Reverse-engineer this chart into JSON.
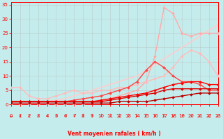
{
  "xlabel": "Vent moyen/en rafales ( km/h )",
  "xlim": [
    0,
    23
  ],
  "ylim": [
    0,
    36
  ],
  "yticks": [
    0,
    5,
    10,
    15,
    20,
    25,
    30,
    35
  ],
  "xticks": [
    0,
    1,
    2,
    3,
    4,
    5,
    6,
    7,
    8,
    9,
    10,
    11,
    12,
    13,
    14,
    15,
    16,
    17,
    18,
    19,
    20,
    21,
    22,
    23
  ],
  "bg_color": "#c5ecec",
  "grid_color": "#b0b0b0",
  "lines": [
    {
      "comment": "straight diagonal - lightest pink, no markers",
      "x": [
        0,
        1,
        2,
        3,
        4,
        5,
        6,
        7,
        8,
        9,
        10,
        11,
        12,
        13,
        14,
        15,
        16,
        17,
        18,
        19,
        20,
        21,
        22,
        23
      ],
      "y": [
        0,
        0,
        0,
        0.5,
        1,
        1.5,
        2,
        3,
        4,
        5,
        6,
        7,
        8,
        9,
        10,
        12,
        14,
        16,
        18,
        20,
        22,
        24,
        26,
        28
      ],
      "color": "#ffcccc",
      "lw": 1.2,
      "marker": null,
      "ms": 0,
      "zorder": 2
    },
    {
      "comment": "big peak at x=17 ~34, light pink with small markers",
      "x": [
        0,
        1,
        2,
        3,
        4,
        5,
        6,
        7,
        8,
        9,
        10,
        11,
        12,
        13,
        14,
        15,
        16,
        17,
        18,
        19,
        20,
        21,
        22,
        23
      ],
      "y": [
        0,
        0,
        0,
        0,
        0,
        0,
        0,
        0,
        0,
        0.5,
        1,
        2,
        3,
        4,
        5,
        8,
        17,
        34,
        32,
        25,
        24,
        25,
        25,
        25
      ],
      "color": "#ffaaaa",
      "lw": 1.0,
      "marker": "D",
      "ms": 2.0,
      "zorder": 3
    },
    {
      "comment": "medium pink line reaching ~19 at x=20, with markers",
      "x": [
        0,
        1,
        2,
        3,
        4,
        5,
        6,
        7,
        8,
        9,
        10,
        11,
        12,
        13,
        14,
        15,
        16,
        17,
        18,
        19,
        20,
        21,
        22,
        23
      ],
      "y": [
        6,
        6,
        3,
        2,
        2,
        3,
        4,
        5,
        4,
        4,
        5,
        5,
        6,
        6,
        7,
        8,
        9,
        10,
        13,
        17,
        19,
        18,
        15,
        10
      ],
      "color": "#ffbbbb",
      "lw": 1.0,
      "marker": "D",
      "ms": 2.0,
      "zorder": 3
    },
    {
      "comment": "dark red line peak ~15 at x=17-18",
      "x": [
        0,
        1,
        2,
        3,
        4,
        5,
        6,
        7,
        8,
        9,
        10,
        11,
        12,
        13,
        14,
        15,
        16,
        17,
        18,
        19,
        20,
        21,
        22,
        23
      ],
      "y": [
        1,
        1,
        1,
        1,
        1,
        1,
        1,
        1.5,
        2,
        2.5,
        3,
        4,
        5,
        6,
        8,
        12,
        15,
        13,
        10,
        8,
        8,
        7,
        5,
        5
      ],
      "color": "#ff4444",
      "lw": 1.0,
      "marker": "D",
      "ms": 2.0,
      "zorder": 5
    },
    {
      "comment": "red line - mostly flat ~1 then rises to ~8",
      "x": [
        0,
        1,
        2,
        3,
        4,
        5,
        6,
        7,
        8,
        9,
        10,
        11,
        12,
        13,
        14,
        15,
        16,
        17,
        18,
        19,
        20,
        21,
        22,
        23
      ],
      "y": [
        1,
        1,
        1,
        1,
        1,
        1,
        1,
        1,
        1,
        1,
        1.5,
        2,
        2.5,
        3,
        3.5,
        4,
        5,
        6,
        7,
        7.5,
        8,
        8,
        7,
        7
      ],
      "color": "#ff0000",
      "lw": 1.0,
      "marker": "D",
      "ms": 2.0,
      "zorder": 5
    },
    {
      "comment": "red - flat near 0 then rises slightly",
      "x": [
        0,
        1,
        2,
        3,
        4,
        5,
        6,
        7,
        8,
        9,
        10,
        11,
        12,
        13,
        14,
        15,
        16,
        17,
        18,
        19,
        20,
        21,
        22,
        23
      ],
      "y": [
        1,
        1,
        1,
        1,
        1,
        1,
        1,
        1,
        1,
        1,
        1,
        1.5,
        2,
        2.5,
        3,
        3.5,
        4,
        5,
        5.5,
        5.5,
        5.5,
        5.5,
        5.5,
        5.5
      ],
      "color": "#dd0000",
      "lw": 1.0,
      "marker": "D",
      "ms": 2.0,
      "zorder": 5
    },
    {
      "comment": "bottom flat red line near 0",
      "x": [
        0,
        1,
        2,
        3,
        4,
        5,
        6,
        7,
        8,
        9,
        10,
        11,
        12,
        13,
        14,
        15,
        16,
        17,
        18,
        19,
        20,
        21,
        22,
        23
      ],
      "y": [
        0.5,
        0.5,
        0.5,
        0.5,
        0.5,
        0.5,
        0.5,
        0.5,
        0.5,
        0.5,
        0.5,
        0.5,
        1,
        1,
        1,
        1,
        1.5,
        2,
        2.5,
        3,
        3.5,
        4,
        4,
        4
      ],
      "color": "#bb0000",
      "lw": 1.0,
      "marker": "D",
      "ms": 2.0,
      "zorder": 5
    }
  ],
  "arrow_symbols": [
    "←",
    "↙",
    "↙",
    "↙",
    "↙",
    "↙",
    "↙",
    "↙",
    "↓",
    "↓",
    "↓",
    "↓",
    "↓",
    "↓",
    "↓",
    "↓",
    "↓",
    "↓",
    "↙",
    "↙",
    "↙",
    "↙",
    "↙",
    "↙"
  ],
  "arrow_color": "#ff0000"
}
